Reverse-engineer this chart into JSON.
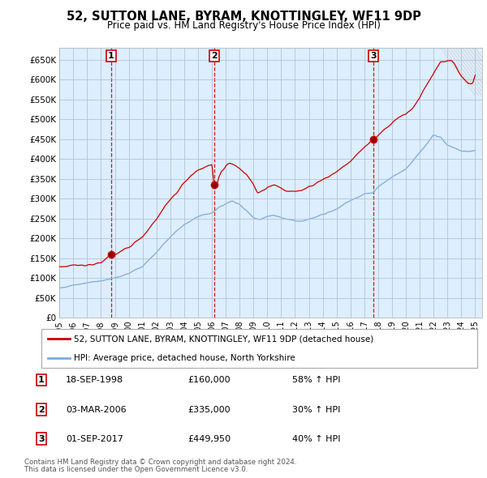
{
  "title": "52, SUTTON LANE, BYRAM, KNOTTINGLEY, WF11 9DP",
  "subtitle": "Price paid vs. HM Land Registry's House Price Index (HPI)",
  "legend_label_red": "52, SUTTON LANE, BYRAM, KNOTTINGLEY, WF11 9DP (detached house)",
  "legend_label_blue": "HPI: Average price, detached house, North Yorkshire",
  "footer1": "Contains HM Land Registry data © Crown copyright and database right 2024.",
  "footer2": "This data is licensed under the Open Government Licence v3.0.",
  "transactions": [
    {
      "num": 1,
      "date": "18-SEP-1998",
      "price": "£160,000",
      "change": "58% ↑ HPI"
    },
    {
      "num": 2,
      "date": "03-MAR-2006",
      "price": "£335,000",
      "change": "30% ↑ HPI"
    },
    {
      "num": 3,
      "date": "01-SEP-2017",
      "price": "£449,950",
      "change": "40% ↑ HPI"
    }
  ],
  "transaction_years": [
    1998.72,
    2006.17,
    2017.67
  ],
  "transaction_prices": [
    160000,
    335000,
    449950
  ],
  "hpi_color": "#7aabdc",
  "hpi_fill": "#ddeeff",
  "price_color": "#cc0000",
  "dashed_color": "#cc0000",
  "ylim": [
    0,
    680000
  ],
  "yticks": [
    0,
    50000,
    100000,
    150000,
    200000,
    250000,
    300000,
    350000,
    400000,
    450000,
    500000,
    550000,
    600000,
    650000
  ],
  "xlim_start": 1995.0,
  "xlim_end": 2025.5,
  "background_color": "#ffffff",
  "chart_bg": "#ddeeff",
  "grid_color": "#aabbcc"
}
